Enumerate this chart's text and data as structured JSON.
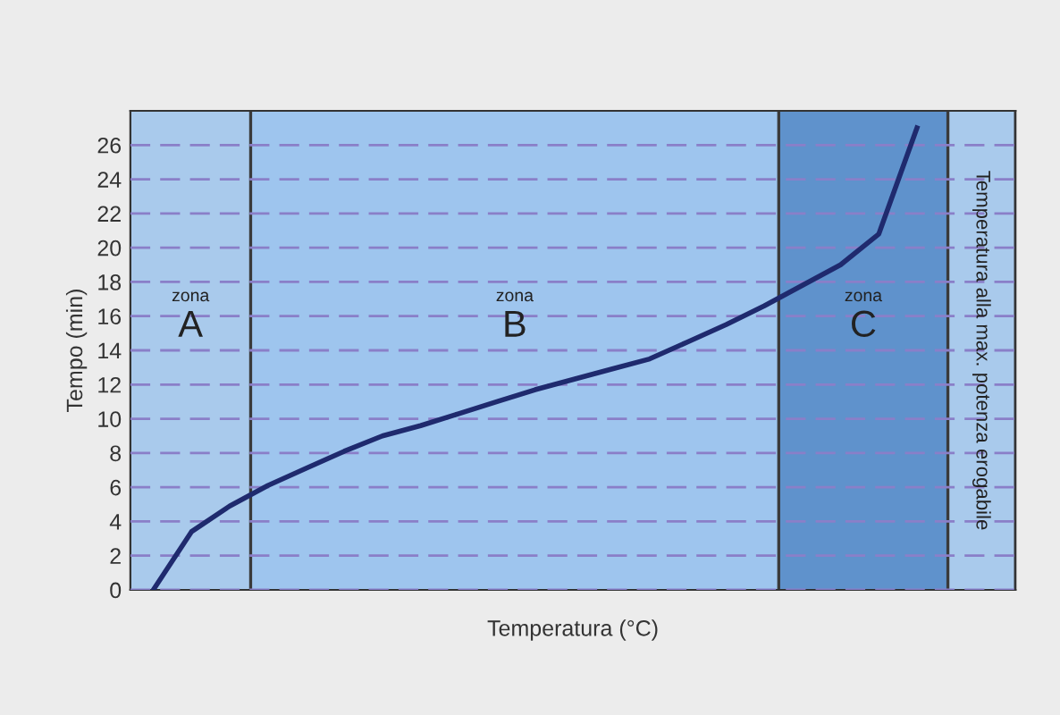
{
  "chart_data": {
    "type": "line",
    "xlabel": "Temperatura (°C)",
    "ylabel": "Tempo (min)",
    "categories": [
      null,
      null,
      null,
      null,
      null,
      null,
      null,
      null,
      null,
      null,
      null,
      null,
      null,
      null,
      null,
      null,
      null,
      null,
      null,
      null,
      null
    ],
    "ylim": [
      0,
      28
    ],
    "yticks": [
      0,
      2,
      4,
      6,
      8,
      10,
      12,
      14,
      16,
      18,
      20,
      22,
      24,
      26
    ],
    "tick_labels": "y",
    "grid": "y",
    "legend": false,
    "marker": "none",
    "line_style": "solid",
    "series": [
      {
        "color": "#1f2a6e",
        "values": [
          0,
          3.4,
          4.9,
          6.1,
          7.1,
          8.1,
          9.0,
          9.6,
          10.3,
          11.0,
          11.7,
          12.3,
          12.9,
          13.5,
          14.5,
          15.5,
          16.6,
          17.8,
          19.0,
          20.8,
          27.0
        ]
      }
    ],
    "annotations": [
      "zona A",
      "zona B",
      "zona C",
      "Temperatura alla max. potenza erogabile"
    ]
  }
}
